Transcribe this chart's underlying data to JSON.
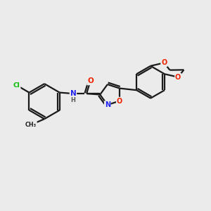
{
  "background_color": "#ebebeb",
  "bond_color": "#1a1a1a",
  "atom_colors": {
    "Cl": "#00bb00",
    "O": "#ee2200",
    "N": "#2222ee",
    "C": "#1a1a1a",
    "H": "#555555"
  },
  "figsize": [
    3.0,
    3.0
  ],
  "dpi": 100
}
